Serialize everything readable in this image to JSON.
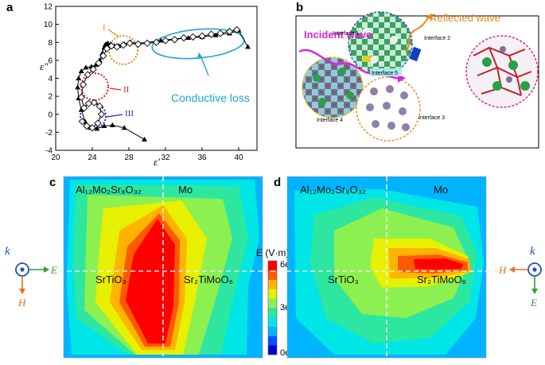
{
  "panels": {
    "a": "a",
    "b": "b",
    "c": "c",
    "d": "d"
  },
  "panel_a": {
    "chart_data": {
      "type": "scatter",
      "xlabel": "ε′",
      "ylabel": "ε″",
      "xlim": [
        20,
        42
      ],
      "ylim": [
        -4,
        12
      ],
      "x_ticks": [
        "20",
        "24",
        "28",
        "32",
        "36",
        "40"
      ],
      "y_ticks": [
        "-4",
        "-2",
        "0",
        "2",
        "4",
        "6",
        "8",
        "10",
        "12"
      ],
      "series": [
        {
          "marker": "filled-triangle",
          "x": [
            29.7,
            27.5,
            26.2,
            25.3,
            24.5,
            23.8,
            23.2,
            22.8,
            22.5,
            22.4,
            22.5,
            22.8,
            23.3,
            23.9,
            24.4,
            24.8,
            25.1,
            25.3,
            25.4,
            25.5,
            25.7,
            26.0,
            26.4,
            26.9,
            27.5,
            28.2,
            29.0,
            30.0,
            31.5,
            33.0,
            34.5,
            36.0,
            37.5,
            39.0,
            40.0,
            41.0
          ],
          "y": [
            -2.8,
            -1.5,
            -1.2,
            -1.3,
            -1.6,
            -1.5,
            -0.8,
            0.5,
            1.8,
            3.0,
            4.0,
            4.8,
            5.2,
            5.3,
            5.5,
            6.0,
            6.8,
            7.4,
            7.7,
            7.8,
            7.9,
            7.8,
            7.6,
            7.6,
            7.8,
            8.0,
            7.9,
            8.0,
            8.2,
            8.4,
            8.5,
            8.6,
            8.8,
            9.0,
            9.3,
            7.5
          ]
        },
        {
          "marker": "open-diamond",
          "x": [
            22.9,
            23.4,
            24.0,
            24.6,
            25.0,
            24.8,
            24.2,
            23.6,
            23.1,
            22.8,
            23.0,
            23.5,
            24.1,
            24.7,
            25.2,
            25.6,
            26.1,
            26.7,
            27.4,
            28.1,
            29.0,
            30.0,
            31.0,
            32.0,
            33.0,
            34.0,
            35.0,
            36.0,
            37.0,
            38.0,
            39.0,
            39.8
          ],
          "y": [
            -0.8,
            -1.3,
            -1.5,
            -1.0,
            0.0,
            0.9,
            1.3,
            1.2,
            0.7,
            1.9,
            3.3,
            4.4,
            5.0,
            5.7,
            6.5,
            7.3,
            7.6,
            7.5,
            7.7,
            7.9,
            7.8,
            7.9,
            8.0,
            8.2,
            8.3,
            8.5,
            8.6,
            8.7,
            8.9,
            9.0,
            9.2,
            9.4
          ]
        }
      ],
      "annotations": [
        {
          "text": "I",
          "color": "#e8871e"
        },
        {
          "text": "II",
          "color": "#e02020"
        },
        {
          "text": "III",
          "color": "#1a2fd0"
        },
        {
          "text": "Conductive loss",
          "color": "#1fa6d8"
        }
      ]
    }
  },
  "panel_b": {
    "incident_text": "Incident wave",
    "reflected_text": "Reflected wave",
    "interfaces": [
      "Interface 1",
      "Interface 2",
      "Interface 3",
      "Interface 4",
      "Interface 5"
    ],
    "colors": {
      "incident": "#e020e0",
      "reflected": "#e8871e"
    }
  },
  "panel_c": {
    "labels": {
      "top_left": "Al₁₂Mo₂Sr₈O₃₂",
      "top_right": "Mo",
      "bottom_left": "SrTiO₃",
      "bottom_right": "Sr₂TiMoO₆"
    },
    "axis_k": "k",
    "axis_e": "E",
    "axis_h": "H"
  },
  "panel_d": {
    "labels": {
      "top_left": "Al₁₂Mo₂Sr₈O₃₂",
      "top_right": "Mo",
      "bottom_left": "SrTiO₃",
      "bottom_right": "Sr₂TiMoO₆"
    },
    "axis_k": "k",
    "axis_e": "E",
    "axis_h": "H"
  },
  "colorbar": {
    "title": "E (V·m)",
    "ticks": [
      "6e⁻¹",
      "3e⁻¹",
      "0e⁻¹"
    ],
    "levels": [
      "#0000c8",
      "#0050ff",
      "#00b4ff",
      "#00e6e6",
      "#2de6a0",
      "#8cf050",
      "#e6f000",
      "#ffb400",
      "#ff5a00",
      "#ff0000"
    ]
  }
}
